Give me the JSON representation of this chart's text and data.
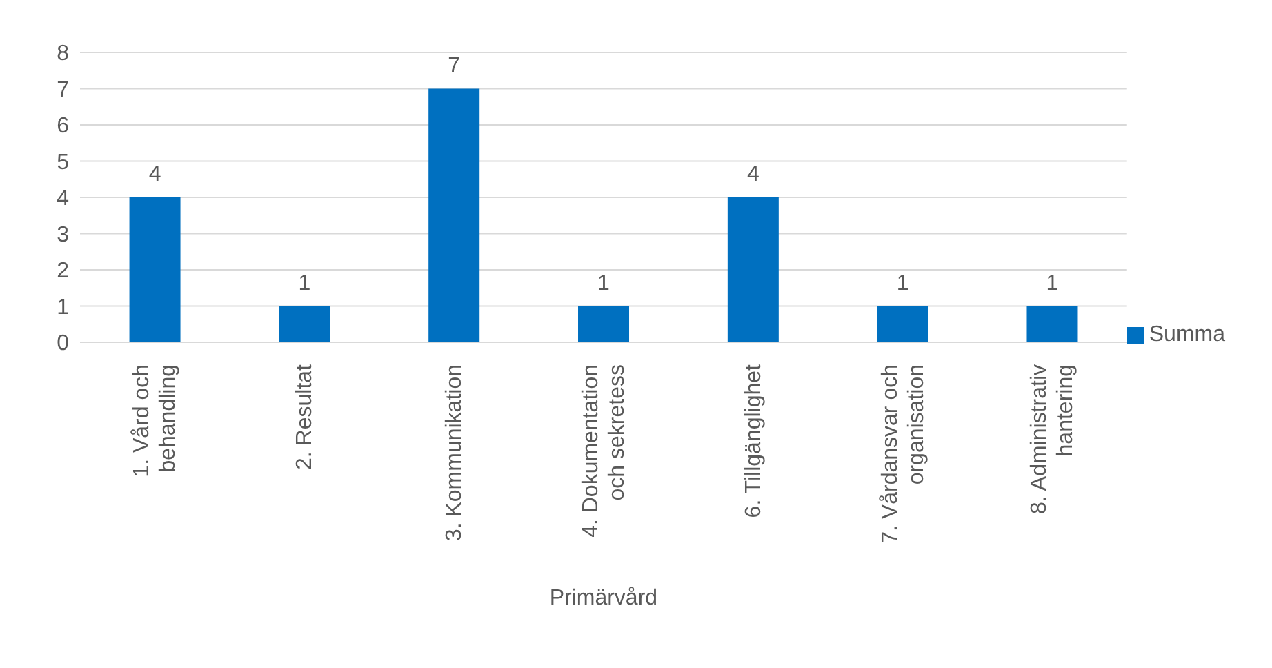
{
  "chart_data": {
    "type": "bar",
    "xlabel": "Primärvård",
    "categories": [
      "1. Vård och behandling",
      "2. Resultat",
      "3. Kommunikation",
      "4. Dokumentation och sekretess",
      "6. Tillgänglighet",
      "7. Vårdansvar och organisation",
      "8. Administrativ hantering"
    ],
    "series": [
      {
        "name": "Summa",
        "color": "#0070c0",
        "values": [
          4,
          1,
          7,
          1,
          4,
          1,
          1
        ]
      }
    ],
    "ylim": [
      0,
      8
    ],
    "yticks": [
      0,
      1,
      2,
      3,
      4,
      5,
      6,
      7,
      8
    ],
    "grid": "y",
    "legend": "right",
    "data_labels": true
  }
}
